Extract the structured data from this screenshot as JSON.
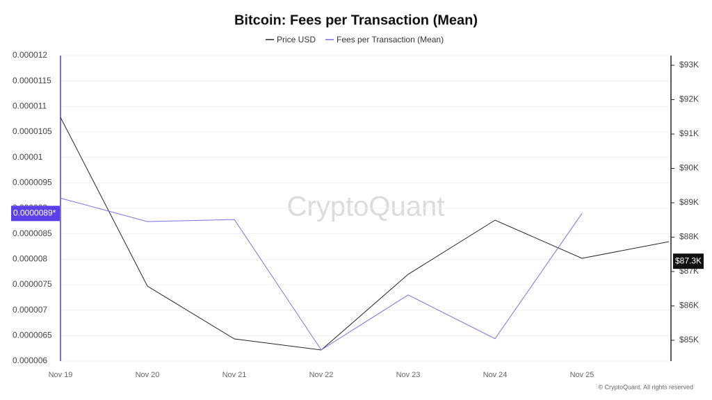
{
  "chart_data": {
    "type": "line",
    "title": "Bitcoin: Fees per Transaction (Mean)",
    "watermark": "CryptoQuant",
    "footer": "© CryptoQuant. All rights reserved",
    "categories": [
      "Nov 19",
      "Nov 20",
      "Nov 21",
      "Nov 22",
      "Nov 23",
      "Nov 24",
      "Nov 25",
      null
    ],
    "series": [
      {
        "name": "Price USD",
        "color": "#222222",
        "axis": "y2",
        "values": [
          91485,
          86576,
          85040,
          84717,
          86919,
          88495,
          87384,
          87869
        ]
      },
      {
        "name": "Fees per Transaction (Mean)",
        "color": "#7b6fe0",
        "axis": "y",
        "values": [
          9.2e-06,
          8.74e-06,
          8.78e-06,
          6.22e-06,
          7.3e-06,
          6.44e-06,
          8.9e-06,
          null
        ]
      }
    ],
    "ylim": [
      6e-06,
      1.2e-05
    ],
    "yticks": [
      6e-06,
      6.5e-06,
      7e-06,
      7.5e-06,
      8e-06,
      8.5e-06,
      9e-06,
      9.5e-06,
      1e-05,
      1.05e-05,
      1.1e-05,
      1.15e-05,
      1.2e-05
    ],
    "y2lim": [
      84394,
      93283
    ],
    "y2ticks": [
      {
        "value": 85000,
        "label": "$85K"
      },
      {
        "value": 86000,
        "label": "$86K"
      },
      {
        "value": 87000,
        "label": "$87K"
      },
      {
        "value": 88000,
        "label": "$88K"
      },
      {
        "value": 89000,
        "label": "$89K"
      },
      {
        "value": 90000,
        "label": "$90K"
      },
      {
        "value": 91000,
        "label": "$91K"
      },
      {
        "value": 92000,
        "label": "$92K"
      },
      {
        "value": 93000,
        "label": "$93K"
      }
    ],
    "current_y": {
      "value": 8.9e-06,
      "label": "0.0000089*"
    },
    "current_y2": {
      "value": 87300,
      "label": "$87.3K"
    },
    "grid": true
  }
}
